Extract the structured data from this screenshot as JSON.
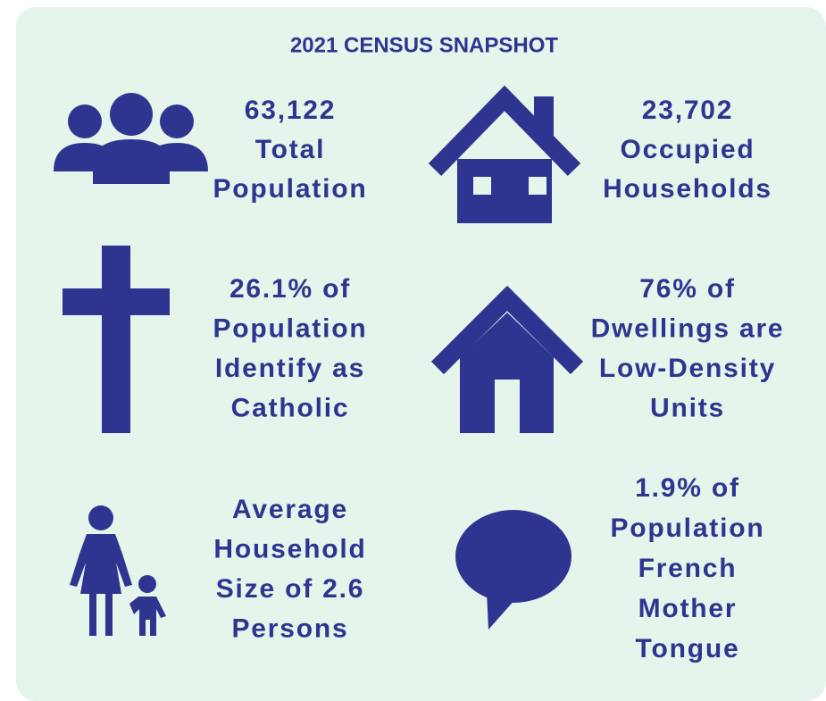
{
  "title": "2021 CENSUS SNAPSHOT",
  "items": [
    {
      "lines": [
        "63,122",
        "Total",
        "Population"
      ]
    },
    {
      "lines": [
        "23,702",
        "Occupied",
        "Households"
      ]
    },
    {
      "lines": [
        "26.1% of",
        "Population",
        "Identify as",
        "Catholic"
      ]
    },
    {
      "lines": [
        "76% of",
        "Dwellings are",
        "Low-Density",
        "Units"
      ]
    },
    {
      "lines": [
        "Average",
        "Household",
        "Size of 2.6",
        "Persons"
      ]
    },
    {
      "lines": [
        "1.9% of",
        "Population",
        "French",
        "Mother",
        "Tongue"
      ]
    }
  ]
}
